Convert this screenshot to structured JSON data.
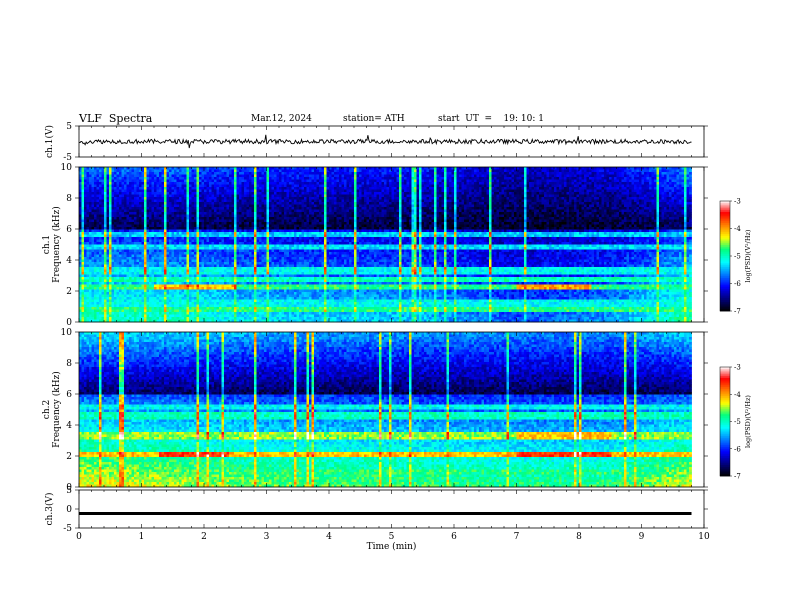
{
  "header": {
    "title": "VLF  Spectra",
    "date": "Mar.12, 2024",
    "station": "station= ATH",
    "start": "start  UT  =    19: 10: 1"
  },
  "colors": {
    "background": "#ffffff",
    "axis": "#000000",
    "colormap": [
      "#000000",
      "#00007f",
      "#0000ff",
      "#0080ff",
      "#00ffff",
      "#00ff80",
      "#ffff00",
      "#ff8000",
      "#ff0000",
      "#ffffff"
    ]
  },
  "chart_data": [
    {
      "id": "ch1-waveform",
      "type": "line",
      "ylabel": "ch.1(V)",
      "ylim": [
        -5,
        5
      ],
      "yticks": [
        "5",
        "-5"
      ],
      "xlim": [
        0,
        10
      ],
      "x_extent": 9.8,
      "baseline": 0,
      "description": "noise waveform around 0 V with small spikes"
    },
    {
      "id": "ch1-spectrogram",
      "type": "heatmap",
      "ylabel_line1": "ch.1",
      "ylabel_line2": "Frequency  (kHz)",
      "ylim": [
        0,
        10
      ],
      "yticks": [
        "0",
        "2",
        "4",
        "6",
        "8",
        "10"
      ],
      "xlim": [
        0,
        10
      ],
      "x_extent": 9.8,
      "colorbar": {
        "label": "log(PSD)(V²/Hz)",
        "range": [
          -7,
          -3
        ],
        "ticks": [
          "-3",
          "-4",
          "-5",
          "-6",
          "-7"
        ]
      },
      "bands": [
        {
          "f": 0.4,
          "level": 0.1
        },
        {
          "f": 0.8,
          "level": 0.55
        },
        {
          "f": 1.2,
          "level": 0.45
        },
        {
          "f": 2.2,
          "level": 0.55,
          "peak": [
            [
              1.2,
              2.5,
              0.72
            ],
            [
              7.0,
              8.2,
              0.75
            ]
          ]
        },
        {
          "f": 2.8,
          "level": 0.5
        },
        {
          "f": 3.3,
          "level": 0.45
        },
        {
          "f": 4.8,
          "level": 0.42
        },
        {
          "f": 5.6,
          "level": 0.4
        }
      ],
      "profile": [
        [
          0,
          0.42
        ],
        [
          1.5,
          0.42
        ],
        [
          2.5,
          0.36
        ],
        [
          3.5,
          0.34
        ],
        [
          5.5,
          0.32
        ],
        [
          7,
          0.22
        ],
        [
          8.5,
          0.28
        ],
        [
          10,
          0.5
        ]
      ]
    },
    {
      "id": "ch2-spectrogram",
      "type": "heatmap",
      "ylabel_line1": "ch.2",
      "ylabel_line2": "Frequency  (kHz)",
      "ylim": [
        0,
        10
      ],
      "yticks": [
        "0",
        "2",
        "4",
        "6",
        "8",
        "10"
      ],
      "xlim": [
        0,
        10
      ],
      "x_extent": 9.8,
      "colorbar": {
        "label": "log(PSD)(V²/Hz)",
        "range": [
          -7,
          -3
        ],
        "ticks": [
          "-3",
          "-4",
          "-5",
          "-6",
          "-7"
        ]
      },
      "bands": [
        {
          "f": 0.3,
          "level": 0.5
        },
        {
          "f": 1.0,
          "level": 0.55
        },
        {
          "f": 2.1,
          "level": 0.72,
          "peak": [
            [
              1.3,
              2.4,
              0.85
            ],
            [
              7.0,
              8.5,
              0.85
            ]
          ]
        },
        {
          "f": 3.3,
          "level": 0.62,
          "peak": [
            [
              7.0,
              8.5,
              0.72
            ]
          ]
        },
        {
          "f": 4.6,
          "level": 0.5
        },
        {
          "f": 5.2,
          "level": 0.45
        }
      ],
      "profile": [
        [
          0,
          0.58
        ],
        [
          1,
          0.56
        ],
        [
          3,
          0.5
        ],
        [
          5,
          0.48
        ],
        [
          7,
          0.46
        ],
        [
          8.5,
          0.46
        ],
        [
          10,
          0.58
        ]
      ]
    },
    {
      "id": "ch3-waveform",
      "type": "line",
      "ylabel": "ch.3(V)",
      "ylim": [
        -5,
        5
      ],
      "yticks": [
        "5",
        "0",
        "-5"
      ],
      "xlim": [
        0,
        10
      ],
      "x_extent": 9.8,
      "baseline": -1.2,
      "xlabel": "Time  (min)",
      "xticks": [
        "0",
        "1",
        "2",
        "3",
        "4",
        "5",
        "6",
        "7",
        "8",
        "9",
        "10"
      ],
      "description": "flat thick trace near -1.2 V"
    }
  ]
}
